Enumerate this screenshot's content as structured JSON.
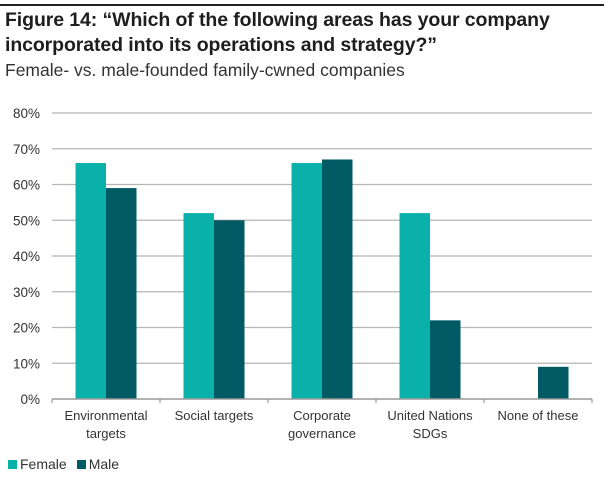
{
  "figure": {
    "title": "Figure 14: “Which of the following areas has your company incorporated into its operations and strategy?”",
    "subtitle": "Female- vs. male-founded family-cwned companies"
  },
  "colors": {
    "female": "#0AB0AA",
    "male": "#005A64",
    "grid": "#b5b5b5",
    "axis": "#999999"
  },
  "chart_data": {
    "type": "bar",
    "title": "Figure 14: “Which of the following areas has your company incorporated into its operations and strategy?”",
    "subtitle": "Female- vs. male-founded family-cwned companies",
    "categories": [
      [
        "Environmental",
        "targets"
      ],
      [
        "Social targets"
      ],
      [
        "Corporate",
        "governance"
      ],
      [
        "United Nations",
        "SDGs"
      ],
      [
        "None of these"
      ]
    ],
    "series": [
      {
        "name": "Female",
        "values": [
          66,
          52,
          66,
          52,
          0
        ]
      },
      {
        "name": "Male",
        "values": [
          59,
          50,
          67,
          22,
          9
        ]
      }
    ],
    "yticks": [
      "0%",
      "10%",
      "20%",
      "30%",
      "40%",
      "50%",
      "60%",
      "70%",
      "80%"
    ],
    "ylim": [
      0,
      80
    ],
    "xlabel": "",
    "ylabel": "",
    "grid": true,
    "legend": "bottom-left"
  }
}
